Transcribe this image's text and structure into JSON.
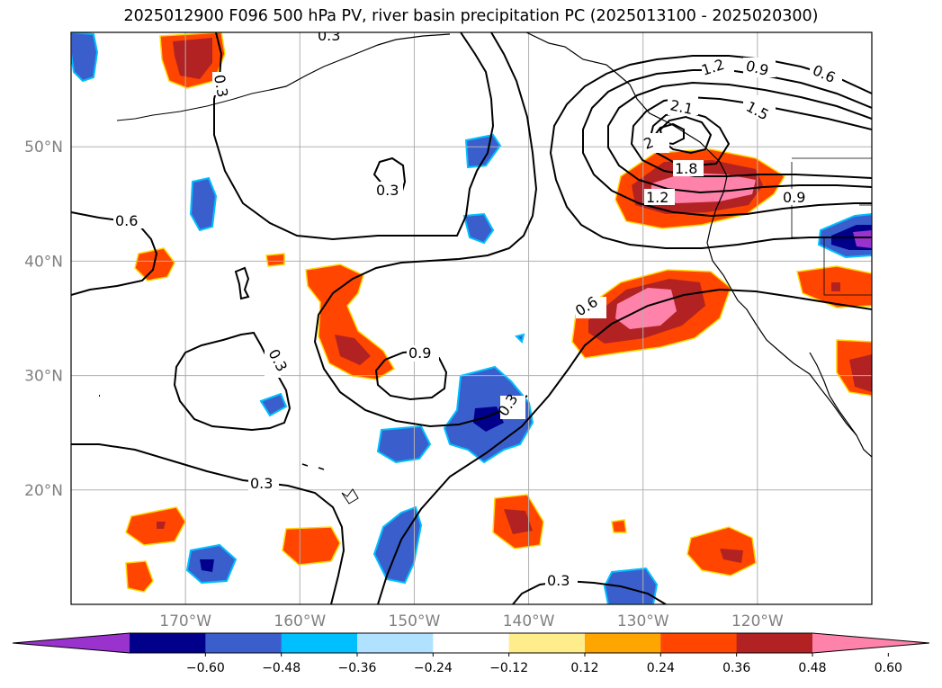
{
  "title": "2025012900 F096 500 hPa PV, river basin precipitation PC (2025013100 - 2025020300)",
  "map": {
    "lon_ticks": [
      {
        "lon": -170,
        "label": "170°W"
      },
      {
        "lon": -160,
        "label": "160°W"
      },
      {
        "lon": -150,
        "label": "150°W"
      },
      {
        "lon": -140,
        "label": "140°W"
      },
      {
        "lon": -130,
        "label": "130°W"
      },
      {
        "lon": -120,
        "label": "120°W"
      }
    ],
    "lat_ticks": [
      {
        "lat": 50,
        "label": "50°N"
      },
      {
        "lat": 40,
        "label": "40°N"
      },
      {
        "lat": 30,
        "label": "30°N"
      },
      {
        "lat": 20,
        "label": "20°N"
      }
    ],
    "grid": true,
    "projection": "PlateCarree",
    "extent": {
      "lon": [
        -180,
        -110
      ],
      "lat": [
        10,
        60
      ]
    }
  },
  "colorbar": {
    "ticks": [
      "−0.60",
      "−0.48",
      "−0.36",
      "−0.24",
      "−0.12",
      "0.12",
      "0.24",
      "0.36",
      "0.48",
      "0.60"
    ],
    "colors": [
      "#9a32cd",
      "#00008b",
      "#3a5fcd",
      "#00bfff",
      "#b0e2ff",
      "#ffffff",
      "#ffec8b",
      "#ffa500",
      "#ff4500",
      "#b22222",
      "#ff82ab"
    ],
    "extend": "both"
  },
  "contour_labels": [
    "0.3",
    "0.6",
    "0.9",
    "1.2",
    "1.5",
    "1.8",
    "2.1"
  ]
}
